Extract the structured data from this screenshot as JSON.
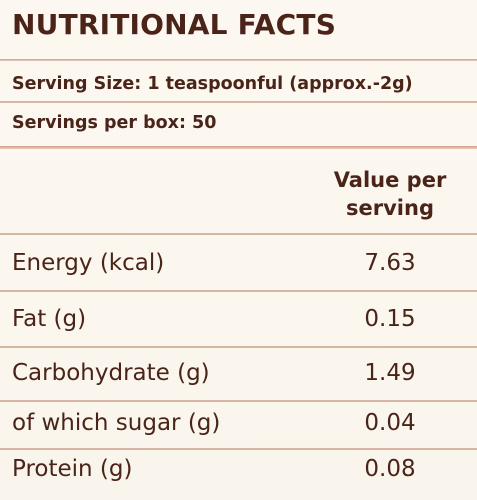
{
  "title": "NUTRITIONAL FACTS",
  "serving_size": "Serving Size: 1 teaspoonful (approx.-2g)",
  "servings_per_box": "Servings per box: 50",
  "column_header": {
    "line1": "Value per",
    "line2": "serving"
  },
  "rows": [
    {
      "label": "Energy (kcal)",
      "value": "7.63"
    },
    {
      "label": "Fat (g)",
      "value": "0.15"
    },
    {
      "label": "Carbohydrate (g)",
      "value": "1.49"
    },
    {
      "label": "of which sugar (g)",
      "value": "0.04"
    },
    {
      "label": "Protein (g)",
      "value": "0.08"
    }
  ],
  "colors": {
    "text": "#4a2418",
    "background": "#fbf7f0",
    "divider": "#d8b6a3"
  }
}
